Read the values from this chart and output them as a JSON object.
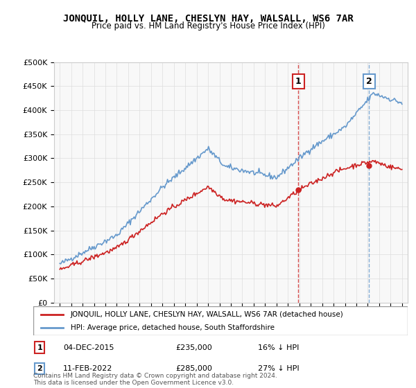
{
  "title": "JONQUIL, HOLLY LANE, CHESLYN HAY, WALSALL, WS6 7AR",
  "subtitle": "Price paid vs. HM Land Registry's House Price Index (HPI)",
  "ylabel_ticks": [
    "£0",
    "£50K",
    "£100K",
    "£150K",
    "£200K",
    "£250K",
    "£300K",
    "£350K",
    "£400K",
    "£450K",
    "£500K"
  ],
  "ytick_values": [
    0,
    50000,
    100000,
    150000,
    200000,
    250000,
    300000,
    350000,
    400000,
    450000,
    500000
  ],
  "ylim": [
    0,
    500000
  ],
  "hpi_color": "#6699cc",
  "price_color": "#cc2222",
  "marker1_date": 2015.92,
  "marker1_price": 235000,
  "marker1_label": "1",
  "marker2_date": 2022.12,
  "marker2_price": 285000,
  "marker2_label": "2",
  "legend_line1": "JONQUIL, HOLLY LANE, CHESLYN HAY, WALSALL, WS6 7AR (detached house)",
  "legend_line2": "HPI: Average price, detached house, South Staffordshire",
  "annotation1": "1   04-DEC-2015        £235,000        16% ↓ HPI",
  "annotation2": "2   11-FEB-2022        £285,000        27% ↓ HPI",
  "footer": "Contains HM Land Registry data © Crown copyright and database right 2024.\nThis data is licensed under the Open Government Licence v3.0.",
  "background_color": "#ffffff",
  "grid_color": "#dddddd"
}
